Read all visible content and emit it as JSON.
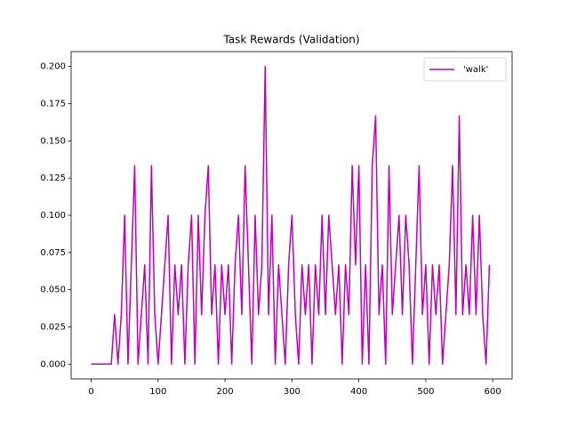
{
  "chart_data": {
    "type": "line",
    "title": "Task Rewards (Validation)",
    "x": [
      0,
      5,
      10,
      15,
      20,
      25,
      30,
      35,
      40,
      45,
      50,
      55,
      60,
      65,
      70,
      75,
      80,
      85,
      90,
      95,
      100,
      105,
      110,
      115,
      120,
      125,
      130,
      135,
      140,
      145,
      150,
      155,
      160,
      165,
      170,
      175,
      180,
      185,
      190,
      195,
      200,
      205,
      210,
      215,
      220,
      225,
      230,
      235,
      240,
      245,
      250,
      255,
      260,
      265,
      270,
      275,
      280,
      285,
      290,
      295,
      300,
      305,
      310,
      315,
      320,
      325,
      330,
      335,
      340,
      345,
      350,
      355,
      360,
      365,
      370,
      375,
      380,
      385,
      390,
      395,
      400,
      405,
      410,
      415,
      420,
      425,
      430,
      435,
      440,
      445,
      450,
      455,
      460,
      465,
      470,
      475,
      480,
      485,
      490,
      495,
      500,
      505,
      510,
      515,
      520,
      525,
      530,
      535,
      540,
      545,
      550,
      555,
      560,
      565,
      570,
      575,
      580,
      585,
      590,
      595
    ],
    "series": [
      {
        "name": "'walk'",
        "color": "#bf00bf",
        "values": [
          0,
          0,
          0,
          0,
          0,
          0,
          0,
          0.0333,
          0,
          0.0333,
          0.1,
          0,
          0.0667,
          0.1333,
          0,
          0.0333,
          0.0667,
          0,
          0.1333,
          0.0333,
          0,
          0.0333,
          0.0667,
          0.1,
          0,
          0.0667,
          0.0333,
          0.0667,
          0,
          0.0667,
          0.1,
          0,
          0.1,
          0.0333,
          0.1,
          0.1333,
          0.0333,
          0.0667,
          0,
          0.0667,
          0.0333,
          0.0667,
          0,
          0.0667,
          0.1,
          0.0333,
          0.1333,
          0.0667,
          0,
          0.1,
          0.0333,
          0.0667,
          0.2,
          0.0333,
          0.1,
          0,
          0.0667,
          0.0333,
          0,
          0.0667,
          0.1,
          0.0333,
          0,
          0.0667,
          0.0333,
          0.0667,
          0,
          0.0667,
          0.0333,
          0.1,
          0.0333,
          0.1,
          0.0667,
          0.0333,
          0.0667,
          0,
          0.0667,
          0.0333,
          0.1333,
          0.0667,
          0.1333,
          0,
          0.0667,
          0,
          0.1333,
          0.1667,
          0.0333,
          0.0667,
          0,
          0.1333,
          0.0333,
          0.0667,
          0.1,
          0.0333,
          0.1,
          0.0667,
          0,
          0.0667,
          0.1333,
          0.0333,
          0.0667,
          0,
          0.0667,
          0.0333,
          0.0667,
          0,
          0.0333,
          0.0667,
          0.1333,
          0.0333,
          0.1667,
          0.0333,
          0.0667,
          0.0333,
          0.1,
          0.0333,
          0.1,
          0.0333,
          0,
          0.0667
        ]
      }
    ],
    "xlim": [
      -29.95,
      628.95
    ],
    "ylim": [
      -0.01,
      0.21
    ],
    "xticks": [
      0,
      100,
      200,
      300,
      400,
      500,
      600
    ],
    "yticks": [
      {
        "value": 0,
        "label": "0.000"
      },
      {
        "value": 0.025,
        "label": "0.025"
      },
      {
        "value": 0.05,
        "label": "0.050"
      },
      {
        "value": 0.075,
        "label": "0.075"
      },
      {
        "value": 0.1,
        "label": "0.100"
      },
      {
        "value": 0.125,
        "label": "0.125"
      },
      {
        "value": 0.15,
        "label": "0.150"
      },
      {
        "value": 0.175,
        "label": "0.175"
      },
      {
        "value": 0.2,
        "label": "0.200"
      }
    ],
    "legend": "upper right"
  }
}
